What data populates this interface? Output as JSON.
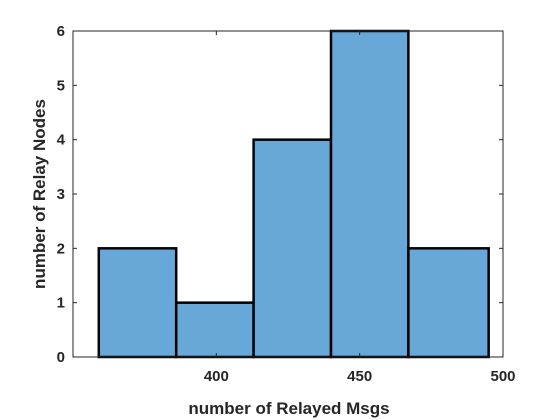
{
  "chart_data": {
    "type": "bar",
    "subtype": "histogram",
    "title": "",
    "xlabel": "number of Relayed Msgs",
    "ylabel": "number of Relay Nodes",
    "bin_edges": [
      359,
      386,
      413,
      440,
      467,
      495
    ],
    "counts": [
      2,
      1,
      4,
      6,
      2
    ],
    "xlim": [
      350,
      500
    ],
    "ylim": [
      0,
      6
    ],
    "xticks": [
      400,
      450,
      500
    ],
    "yticks": [
      0,
      1,
      2,
      3,
      4,
      5,
      6
    ],
    "grid": false,
    "bar_color": "#68A8D8",
    "edge_color": "#000000",
    "axis_color": "#262626",
    "box": true
  }
}
